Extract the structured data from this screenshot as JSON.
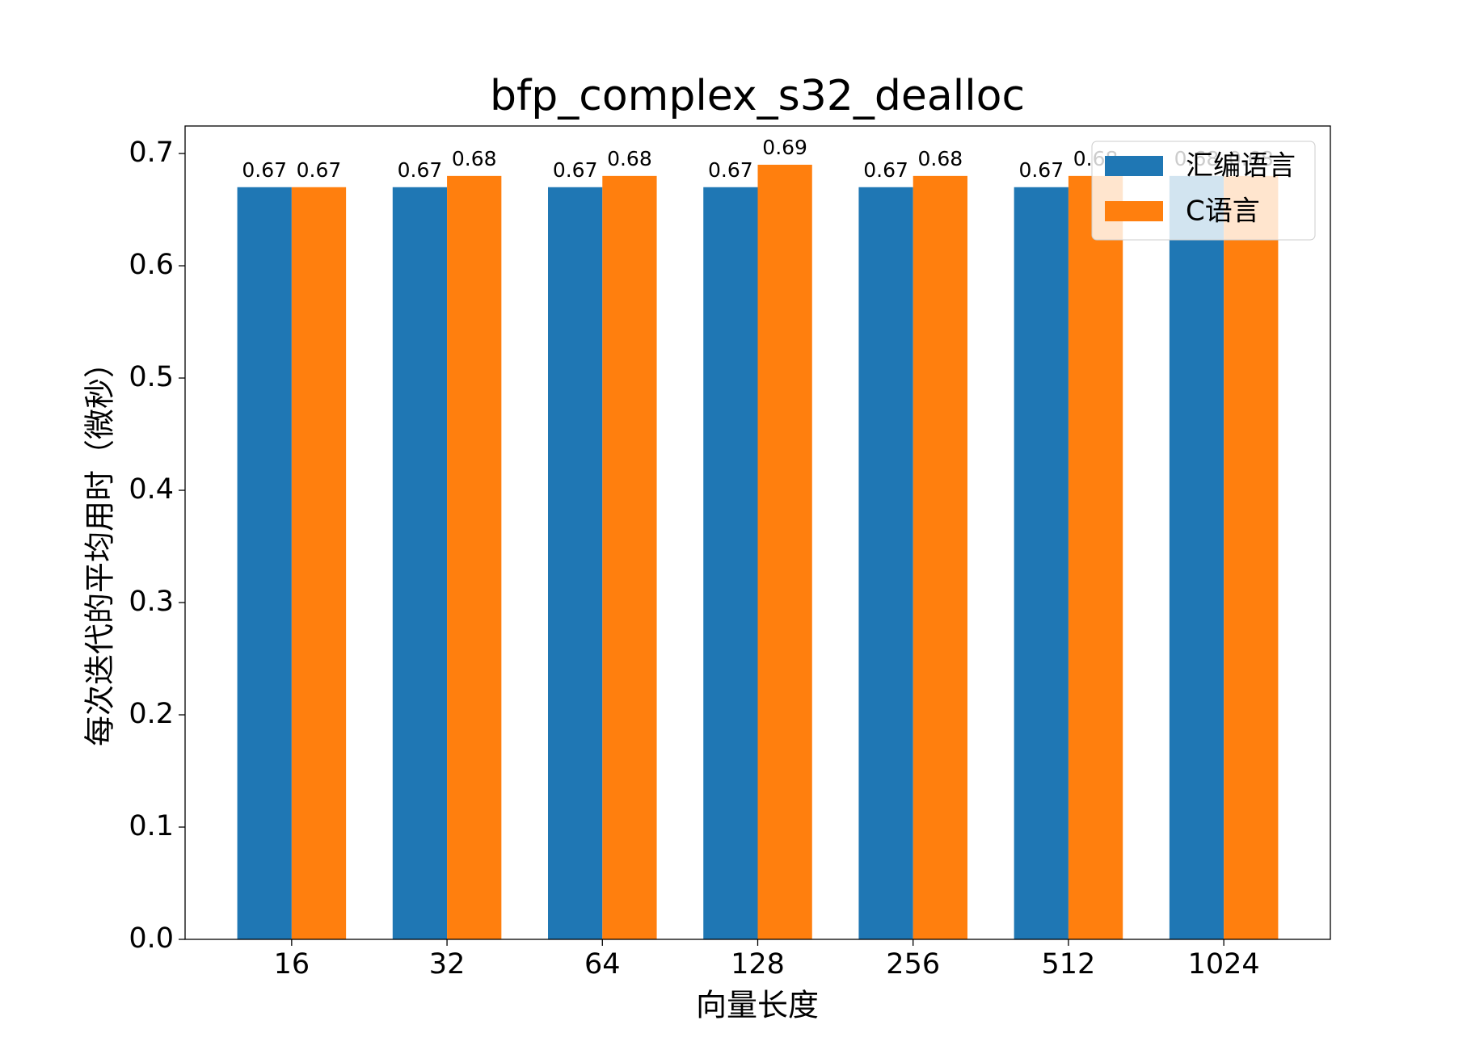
{
  "chart_data": {
    "type": "bar",
    "title": "bfp_complex_s32_dealloc",
    "x_label": "向量长度",
    "y_label": "每次迭代的平均用时（微秒）",
    "categories": [
      "16",
      "32",
      "64",
      "128",
      "256",
      "512",
      "1024"
    ],
    "series": [
      {
        "name": "汇编语言",
        "color": "#1f77b4",
        "values": [
          0.67,
          0.67,
          0.67,
          0.67,
          0.67,
          0.67,
          0.68
        ]
      },
      {
        "name": "C语言",
        "color": "#ff7f0e",
        "values": [
          0.67,
          0.68,
          0.68,
          0.69,
          0.68,
          0.68,
          0.68
        ]
      }
    ],
    "ylim": [
      0,
      0.7245
    ],
    "yticks": [
      {
        "value": 0,
        "label": "0.0"
      },
      0.1,
      0.2,
      0.3,
      0.4,
      0.5,
      0.6,
      0.7
    ],
    "legend": "upper right",
    "grid": false
  }
}
